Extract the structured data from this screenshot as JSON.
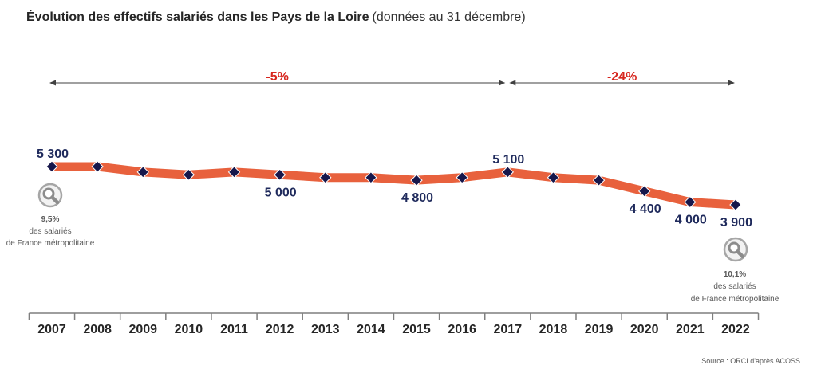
{
  "chart_data": {
    "type": "line",
    "title": "Évolution des effectifs salariés dans les Pays de la Loire",
    "subtitle": "(données au 31 décembre)",
    "categories": [
      "2007",
      "2008",
      "2009",
      "2010",
      "2011",
      "2012",
      "2013",
      "2014",
      "2015",
      "2016",
      "2017",
      "2018",
      "2019",
      "2020",
      "2021",
      "2022"
    ],
    "series": [
      {
        "values": [
          5300,
          5300,
          5100,
          5000,
          5100,
          5000,
          4900,
          4900,
          4800,
          4900,
          5100,
          4900,
          4800,
          4400,
          4000,
          3900
        ],
        "color": "#e8613d",
        "marker_color": "#17174b"
      }
    ],
    "data_labels": [
      {
        "category": "2007",
        "text": "5 300",
        "position": "above"
      },
      {
        "category": "2012",
        "text": "5 000",
        "position": "below"
      },
      {
        "category": "2015",
        "text": "4 800",
        "position": "below"
      },
      {
        "category": "2017",
        "text": "5 100",
        "position": "above"
      },
      {
        "category": "2020",
        "text": "4 400",
        "position": "below"
      },
      {
        "category": "2021",
        "text": "4 000",
        "position": "below"
      },
      {
        "category": "2022",
        "text": "3 900",
        "position": "below"
      }
    ],
    "annotations": [
      {
        "from": "2007",
        "to": "2017",
        "text": "-5%"
      },
      {
        "from": "2017",
        "to": "2022",
        "text": "-24%"
      }
    ],
    "grid": false
  },
  "notes": [
    {
      "icon": "magnifier-icon",
      "percent": "9,5%",
      "line1": "des salariés",
      "line2": "de France métropolitaine"
    },
    {
      "icon": "magnifier-icon",
      "percent": "10,1%",
      "line1": "des salariés",
      "line2": "de France métropolitaine"
    }
  ],
  "source": "Source : ORCI d'après ACOSS",
  "colors": {
    "line": "#e8613d",
    "marker": "#17174b",
    "data_label": "#1f2a5c",
    "annotation": "#d7261e",
    "arrow": "#404040",
    "axis": "#7f7f7f",
    "year_label": "#262626",
    "note_text": "#595959",
    "note_icon": "#9a9a9a"
  }
}
